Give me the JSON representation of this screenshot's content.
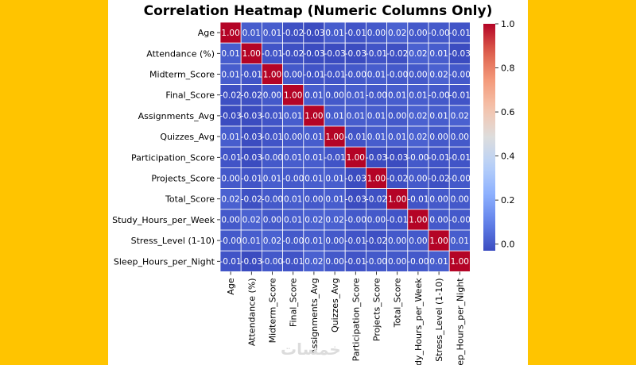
{
  "chart_data": {
    "type": "heatmap",
    "title": "Correlation Heatmap (Numeric Columns Only)",
    "rows": [
      "Age",
      "Attendance (%)",
      "Midterm_Score",
      "Final_Score",
      "Assignments_Avg",
      "Quizzes_Avg",
      "Participation_Score",
      "Projects_Score",
      "Total_Score",
      "Study_Hours_per_Week",
      "Stress_Level (1-10)",
      "Sleep_Hours_per_Night"
    ],
    "columns": [
      "Age",
      "Attendance (%)",
      "Midterm_Score",
      "Final_Score",
      "Assignments_Avg",
      "Quizzes_Avg",
      "Participation_Score",
      "Projects_Score",
      "Total_Score",
      "Study_Hours_per_Week",
      "Stress_Level (1-10)",
      "Sleep_Hours_per_Night"
    ],
    "cell_labels": [
      [
        "1.00",
        "0.01",
        "0.01",
        "-0.02",
        "-0.03",
        "0.01",
        "-0.01",
        "0.00",
        "0.02",
        "0.00",
        "-0.00",
        "-0.01"
      ],
      [
        "0.01",
        "1.00",
        "-0.01",
        "-0.02",
        "-0.03",
        "-0.03",
        "-0.03",
        "-0.01",
        "-0.02",
        "0.02",
        "0.01",
        "-0.03"
      ],
      [
        "0.01",
        "-0.01",
        "1.00",
        "0.00",
        "-0.01",
        "-0.01",
        "-0.00",
        "0.01",
        "-0.00",
        "0.00",
        "0.02",
        "-0.00"
      ],
      [
        "-0.02",
        "-0.02",
        "0.00",
        "1.00",
        "0.01",
        "0.00",
        "0.01",
        "-0.00",
        "0.01",
        "0.01",
        "-0.00",
        "-0.01"
      ],
      [
        "-0.03",
        "-0.03",
        "-0.01",
        "0.01",
        "1.00",
        "0.01",
        "0.01",
        "0.01",
        "0.00",
        "0.02",
        "0.01",
        "0.02"
      ],
      [
        "0.01",
        "-0.03",
        "-0.01",
        "0.00",
        "0.01",
        "1.00",
        "-0.01",
        "0.01",
        "0.01",
        "0.02",
        "0.00",
        "0.00"
      ],
      [
        "-0.01",
        "-0.03",
        "-0.00",
        "0.01",
        "0.01",
        "-0.01",
        "1.00",
        "-0.03",
        "-0.03",
        "-0.00",
        "-0.01",
        "-0.01"
      ],
      [
        "0.00",
        "-0.01",
        "0.01",
        "-0.00",
        "0.01",
        "0.01",
        "-0.03",
        "1.00",
        "-0.02",
        "0.00",
        "-0.02",
        "-0.00"
      ],
      [
        "0.02",
        "-0.02",
        "-0.00",
        "0.01",
        "0.00",
        "0.01",
        "-0.03",
        "-0.02",
        "1.00",
        "-0.01",
        "0.00",
        "0.00"
      ],
      [
        "0.00",
        "0.02",
        "0.00",
        "0.01",
        "0.02",
        "0.02",
        "-0.00",
        "0.00",
        "-0.01",
        "1.00",
        "0.00",
        "-0.00"
      ],
      [
        "-0.00",
        "0.01",
        "0.02",
        "-0.00",
        "0.01",
        "0.00",
        "-0.01",
        "-0.02",
        "0.00",
        "0.00",
        "1.00",
        "0.01"
      ],
      [
        "-0.01",
        "-0.03",
        "-0.00",
        "-0.01",
        "0.02",
        "0.00",
        "-0.01",
        "-0.00",
        "0.00",
        "-0.00",
        "0.01",
        "1.00"
      ]
    ],
    "colorbar": {
      "colormap": "coolwarm",
      "range": [
        -0.03,
        1.0
      ],
      "ticks": [
        "0.0",
        "0.2",
        "0.4",
        "0.6",
        "0.8",
        "1.0"
      ]
    },
    "colors": {
      "low": "#3b4cc0",
      "mid": "#dddddd",
      "high": "#b40426",
      "background": "#ffc400"
    }
  },
  "watermark": "خمسات"
}
